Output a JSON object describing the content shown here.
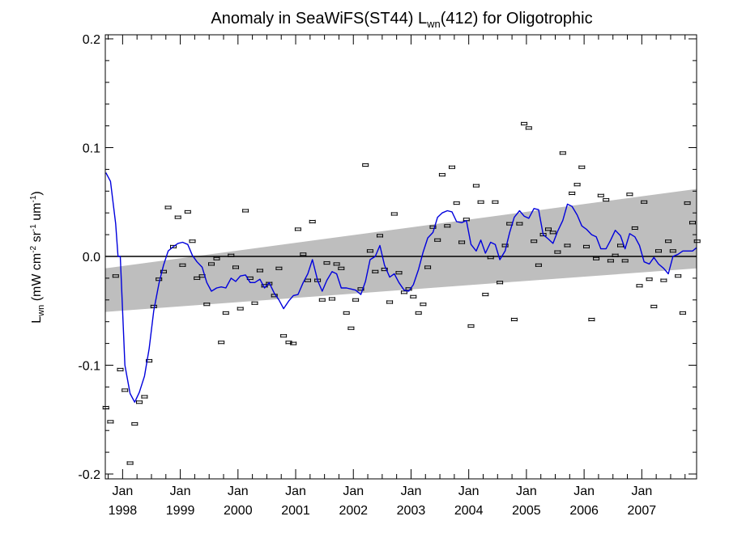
{
  "chart_data": {
    "type": "line",
    "title": {
      "prefix": "Anomaly in SeaWiFS(ST44) L",
      "sub": "wn",
      "suffix": "(412) for Oligotrophic"
    },
    "ylabel": {
      "main": "L",
      "sub": "wn",
      "paren": " (mW cm",
      "exp1": "-2",
      "sr": " sr",
      "exp2": "-1",
      "um": " um",
      "exp3": "-1",
      "close": ")"
    },
    "xlim": [
      1997.7,
      2007.95
    ],
    "ylim": [
      -0.2,
      0.2
    ],
    "yticks": [
      {
        "value": 0.2,
        "label": "0.2"
      },
      {
        "value": 0.1,
        "label": "0.1"
      },
      {
        "value": 0.0,
        "label": "0.0"
      },
      {
        "value": -0.1,
        "label": "-0.1"
      },
      {
        "value": -0.2,
        "label": "-0.2"
      }
    ],
    "xticks": [
      {
        "value": 1998,
        "month": "Jan",
        "year": "1998"
      },
      {
        "value": 1999,
        "month": "Jan",
        "year": "1999"
      },
      {
        "value": 2000,
        "month": "Jan",
        "year": "2000"
      },
      {
        "value": 2001,
        "month": "Jan",
        "year": "2001"
      },
      {
        "value": 2002,
        "month": "Jan",
        "year": "2002"
      },
      {
        "value": 2003,
        "month": "Jan",
        "year": "2003"
      },
      {
        "value": 2004,
        "month": "Jan",
        "year": "2004"
      },
      {
        "value": 2005,
        "month": "Jan",
        "year": "2005"
      },
      {
        "value": 2006,
        "month": "Jan",
        "year": "2006"
      },
      {
        "value": 2007,
        "month": "Jan",
        "year": "2007"
      }
    ],
    "zero_line": 0.0,
    "band": {
      "start": {
        "x": 1997.7,
        "lower": -0.051,
        "upper": -0.011
      },
      "end": {
        "x": 2007.95,
        "lower": -0.011,
        "upper": 0.062
      }
    },
    "monthly_points": [
      {
        "x": 1997.71,
        "y": -0.139
      },
      {
        "x": 1997.79,
        "y": -0.152
      },
      {
        "x": 1997.88,
        "y": -0.018
      },
      {
        "x": 1997.96,
        "y": -0.104
      },
      {
        "x": 1998.04,
        "y": -0.123
      },
      {
        "x": 1998.13,
        "y": -0.19
      },
      {
        "x": 1998.21,
        "y": -0.154
      },
      {
        "x": 1998.29,
        "y": -0.134
      },
      {
        "x": 1998.38,
        "y": -0.129
      },
      {
        "x": 1998.46,
        "y": -0.096
      },
      {
        "x": 1998.54,
        "y": -0.046
      },
      {
        "x": 1998.63,
        "y": -0.021
      },
      {
        "x": 1998.71,
        "y": -0.014
      },
      {
        "x": 1998.79,
        "y": 0.045
      },
      {
        "x": 1998.88,
        "y": 0.009
      },
      {
        "x": 1998.96,
        "y": 0.036
      },
      {
        "x": 1999.04,
        "y": -0.008
      },
      {
        "x": 1999.13,
        "y": 0.041
      },
      {
        "x": 1999.21,
        "y": 0.014
      },
      {
        "x": 1999.29,
        "y": -0.02
      },
      {
        "x": 1999.38,
        "y": -0.018
      },
      {
        "x": 1999.46,
        "y": -0.044
      },
      {
        "x": 1999.54,
        "y": -0.007
      },
      {
        "x": 1999.63,
        "y": -0.002
      },
      {
        "x": 1999.71,
        "y": -0.079
      },
      {
        "x": 1999.79,
        "y": -0.052
      },
      {
        "x": 1999.88,
        "y": 0.001
      },
      {
        "x": 1999.96,
        "y": -0.01
      },
      {
        "x": 2000.04,
        "y": -0.048
      },
      {
        "x": 2000.13,
        "y": 0.042
      },
      {
        "x": 2000.21,
        "y": -0.02
      },
      {
        "x": 2000.29,
        "y": -0.043
      },
      {
        "x": 2000.38,
        "y": -0.013
      },
      {
        "x": 2000.46,
        "y": -0.027
      },
      {
        "x": 2000.54,
        "y": -0.025
      },
      {
        "x": 2000.63,
        "y": -0.036
      },
      {
        "x": 2000.71,
        "y": -0.011
      },
      {
        "x": 2000.79,
        "y": -0.073
      },
      {
        "x": 2000.88,
        "y": -0.079
      },
      {
        "x": 2000.96,
        "y": -0.08
      },
      {
        "x": 2001.04,
        "y": 0.025
      },
      {
        "x": 2001.13,
        "y": 0.002
      },
      {
        "x": 2001.21,
        "y": -0.022
      },
      {
        "x": 2001.29,
        "y": 0.032
      },
      {
        "x": 2001.38,
        "y": -0.022
      },
      {
        "x": 2001.46,
        "y": -0.04
      },
      {
        "x": 2001.54,
        "y": -0.006
      },
      {
        "x": 2001.63,
        "y": -0.039
      },
      {
        "x": 2001.71,
        "y": -0.007
      },
      {
        "x": 2001.79,
        "y": -0.011
      },
      {
        "x": 2001.88,
        "y": -0.052
      },
      {
        "x": 2001.96,
        "y": -0.066
      },
      {
        "x": 2002.04,
        "y": -0.04
      },
      {
        "x": 2002.13,
        "y": -0.03
      },
      {
        "x": 2002.21,
        "y": 0.084
      },
      {
        "x": 2002.29,
        "y": 0.005
      },
      {
        "x": 2002.38,
        "y": -0.014
      },
      {
        "x": 2002.46,
        "y": 0.019
      },
      {
        "x": 2002.54,
        "y": -0.012
      },
      {
        "x": 2002.63,
        "y": -0.042
      },
      {
        "x": 2002.71,
        "y": 0.039
      },
      {
        "x": 2002.79,
        "y": -0.015
      },
      {
        "x": 2002.88,
        "y": -0.033
      },
      {
        "x": 2002.96,
        "y": -0.03
      },
      {
        "x": 2003.04,
        "y": -0.037
      },
      {
        "x": 2003.13,
        "y": -0.052
      },
      {
        "x": 2003.21,
        "y": -0.044
      },
      {
        "x": 2003.29,
        "y": -0.01
      },
      {
        "x": 2003.38,
        "y": 0.027
      },
      {
        "x": 2003.46,
        "y": 0.015
      },
      {
        "x": 2003.54,
        "y": 0.075
      },
      {
        "x": 2003.63,
        "y": 0.028
      },
      {
        "x": 2003.71,
        "y": 0.082
      },
      {
        "x": 2003.79,
        "y": 0.049
      },
      {
        "x": 2003.88,
        "y": 0.013
      },
      {
        "x": 2003.96,
        "y": 0.034
      },
      {
        "x": 2004.04,
        "y": -0.064
      },
      {
        "x": 2004.13,
        "y": 0.065
      },
      {
        "x": 2004.21,
        "y": 0.05
      },
      {
        "x": 2004.29,
        "y": -0.035
      },
      {
        "x": 2004.38,
        "y": -0.001
      },
      {
        "x": 2004.46,
        "y": 0.05
      },
      {
        "x": 2004.54,
        "y": -0.024
      },
      {
        "x": 2004.63,
        "y": 0.01
      },
      {
        "x": 2004.71,
        "y": 0.03
      },
      {
        "x": 2004.79,
        "y": -0.058
      },
      {
        "x": 2004.88,
        "y": 0.03
      },
      {
        "x": 2004.96,
        "y": 0.122
      },
      {
        "x": 2005.04,
        "y": 0.118
      },
      {
        "x": 2005.13,
        "y": 0.014
      },
      {
        "x": 2005.21,
        "y": -0.008
      },
      {
        "x": 2005.29,
        "y": 0.02
      },
      {
        "x": 2005.38,
        "y": 0.025
      },
      {
        "x": 2005.46,
        "y": 0.022
      },
      {
        "x": 2005.54,
        "y": 0.004
      },
      {
        "x": 2005.63,
        "y": 0.095
      },
      {
        "x": 2005.71,
        "y": 0.01
      },
      {
        "x": 2005.79,
        "y": 0.058
      },
      {
        "x": 2005.88,
        "y": 0.066
      },
      {
        "x": 2005.96,
        "y": 0.082
      },
      {
        "x": 2006.04,
        "y": 0.009
      },
      {
        "x": 2006.13,
        "y": -0.058
      },
      {
        "x": 2006.21,
        "y": -0.002
      },
      {
        "x": 2006.29,
        "y": 0.056
      },
      {
        "x": 2006.38,
        "y": 0.052
      },
      {
        "x": 2006.46,
        "y": -0.004
      },
      {
        "x": 2006.54,
        "y": 0.001
      },
      {
        "x": 2006.63,
        "y": 0.01
      },
      {
        "x": 2006.71,
        "y": -0.004
      },
      {
        "x": 2006.79,
        "y": 0.057
      },
      {
        "x": 2006.88,
        "y": 0.026
      },
      {
        "x": 2006.96,
        "y": -0.027
      },
      {
        "x": 2007.04,
        "y": 0.05
      },
      {
        "x": 2007.13,
        "y": -0.021
      },
      {
        "x": 2007.21,
        "y": -0.046
      },
      {
        "x": 2007.29,
        "y": 0.005
      },
      {
        "x": 2007.38,
        "y": -0.022
      },
      {
        "x": 2007.46,
        "y": 0.014
      },
      {
        "x": 2007.54,
        "y": 0.005
      },
      {
        "x": 2007.63,
        "y": -0.018
      },
      {
        "x": 2007.71,
        "y": -0.052
      },
      {
        "x": 2007.79,
        "y": 0.049
      },
      {
        "x": 2007.88,
        "y": 0.031
      },
      {
        "x": 2007.96,
        "y": 0.014
      }
    ],
    "smoothed_line": {
      "color": "#0000dd",
      "points": [
        {
          "x": 1997.71,
          "y": 0.077
        },
        {
          "x": 1997.79,
          "y": 0.069
        },
        {
          "x": 1997.88,
          "y": 0.03
        },
        {
          "x": 1997.92,
          "y": 0.0
        },
        {
          "x": 1997.96,
          "y": 0.0
        },
        {
          "x": 1998.04,
          "y": -0.1
        },
        {
          "x": 1998.13,
          "y": -0.126
        },
        {
          "x": 1998.21,
          "y": -0.134
        },
        {
          "x": 1998.29,
          "y": -0.125
        },
        {
          "x": 1998.38,
          "y": -0.11
        },
        {
          "x": 1998.46,
          "y": -0.085
        },
        {
          "x": 1998.54,
          "y": -0.05
        },
        {
          "x": 1998.63,
          "y": -0.025
        },
        {
          "x": 1998.71,
          "y": -0.008
        },
        {
          "x": 1998.79,
          "y": 0.005
        },
        {
          "x": 1998.88,
          "y": 0.009
        },
        {
          "x": 1998.96,
          "y": 0.012
        },
        {
          "x": 1999.04,
          "y": 0.013
        },
        {
          "x": 1999.13,
          "y": 0.011
        },
        {
          "x": 1999.21,
          "y": 0.001
        },
        {
          "x": 1999.29,
          "y": -0.005
        },
        {
          "x": 1999.38,
          "y": -0.01
        },
        {
          "x": 1999.46,
          "y": -0.024
        },
        {
          "x": 1999.54,
          "y": -0.032
        },
        {
          "x": 1999.63,
          "y": -0.029
        },
        {
          "x": 1999.71,
          "y": -0.028
        },
        {
          "x": 1999.79,
          "y": -0.029
        },
        {
          "x": 1999.88,
          "y": -0.02
        },
        {
          "x": 1999.96,
          "y": -0.023
        },
        {
          "x": 2000.04,
          "y": -0.018
        },
        {
          "x": 2000.13,
          "y": -0.017
        },
        {
          "x": 2000.21,
          "y": -0.024
        },
        {
          "x": 2000.29,
          "y": -0.024
        },
        {
          "x": 2000.38,
          "y": -0.021
        },
        {
          "x": 2000.46,
          "y": -0.029
        },
        {
          "x": 2000.54,
          "y": -0.024
        },
        {
          "x": 2000.63,
          "y": -0.034
        },
        {
          "x": 2000.71,
          "y": -0.04
        },
        {
          "x": 2000.79,
          "y": -0.048
        },
        {
          "x": 2000.88,
          "y": -0.041
        },
        {
          "x": 2000.96,
          "y": -0.036
        },
        {
          "x": 2001.04,
          "y": -0.035
        },
        {
          "x": 2001.13,
          "y": -0.024
        },
        {
          "x": 2001.21,
          "y": -0.016
        },
        {
          "x": 2001.29,
          "y": -0.003
        },
        {
          "x": 2001.38,
          "y": -0.022
        },
        {
          "x": 2001.46,
          "y": -0.032
        },
        {
          "x": 2001.54,
          "y": -0.022
        },
        {
          "x": 2001.63,
          "y": -0.014
        },
        {
          "x": 2001.71,
          "y": -0.016
        },
        {
          "x": 2001.79,
          "y": -0.029
        },
        {
          "x": 2001.88,
          "y": -0.029
        },
        {
          "x": 2001.96,
          "y": -0.03
        },
        {
          "x": 2002.04,
          "y": -0.031
        },
        {
          "x": 2002.13,
          "y": -0.035
        },
        {
          "x": 2002.21,
          "y": -0.023
        },
        {
          "x": 2002.29,
          "y": -0.003
        },
        {
          "x": 2002.38,
          "y": 0.0
        },
        {
          "x": 2002.46,
          "y": 0.01
        },
        {
          "x": 2002.54,
          "y": -0.008
        },
        {
          "x": 2002.63,
          "y": -0.019
        },
        {
          "x": 2002.71,
          "y": -0.016
        },
        {
          "x": 2002.79,
          "y": -0.024
        },
        {
          "x": 2002.88,
          "y": -0.031
        },
        {
          "x": 2002.96,
          "y": -0.032
        },
        {
          "x": 2003.04,
          "y": -0.026
        },
        {
          "x": 2003.13,
          "y": -0.012
        },
        {
          "x": 2003.21,
          "y": 0.004
        },
        {
          "x": 2003.29,
          "y": 0.017
        },
        {
          "x": 2003.38,
          "y": 0.022
        },
        {
          "x": 2003.46,
          "y": 0.036
        },
        {
          "x": 2003.54,
          "y": 0.04
        },
        {
          "x": 2003.63,
          "y": 0.042
        },
        {
          "x": 2003.71,
          "y": 0.041
        },
        {
          "x": 2003.79,
          "y": 0.032
        },
        {
          "x": 2003.88,
          "y": 0.031
        },
        {
          "x": 2003.96,
          "y": 0.033
        },
        {
          "x": 2004.04,
          "y": 0.011
        },
        {
          "x": 2004.13,
          "y": 0.005
        },
        {
          "x": 2004.21,
          "y": 0.015
        },
        {
          "x": 2004.29,
          "y": 0.003
        },
        {
          "x": 2004.38,
          "y": 0.013
        },
        {
          "x": 2004.46,
          "y": 0.011
        },
        {
          "x": 2004.54,
          "y": -0.003
        },
        {
          "x": 2004.63,
          "y": 0.005
        },
        {
          "x": 2004.71,
          "y": 0.022
        },
        {
          "x": 2004.79,
          "y": 0.036
        },
        {
          "x": 2004.88,
          "y": 0.042
        },
        {
          "x": 2004.96,
          "y": 0.037
        },
        {
          "x": 2005.04,
          "y": 0.035
        },
        {
          "x": 2005.13,
          "y": 0.044
        },
        {
          "x": 2005.21,
          "y": 0.043
        },
        {
          "x": 2005.29,
          "y": 0.02
        },
        {
          "x": 2005.38,
          "y": 0.016
        },
        {
          "x": 2005.46,
          "y": 0.012
        },
        {
          "x": 2005.54,
          "y": 0.023
        },
        {
          "x": 2005.63,
          "y": 0.033
        },
        {
          "x": 2005.71,
          "y": 0.048
        },
        {
          "x": 2005.79,
          "y": 0.046
        },
        {
          "x": 2005.88,
          "y": 0.038
        },
        {
          "x": 2005.96,
          "y": 0.028
        },
        {
          "x": 2006.04,
          "y": 0.025
        },
        {
          "x": 2006.13,
          "y": 0.02
        },
        {
          "x": 2006.21,
          "y": 0.018
        },
        {
          "x": 2006.29,
          "y": 0.007
        },
        {
          "x": 2006.38,
          "y": 0.007
        },
        {
          "x": 2006.46,
          "y": 0.015
        },
        {
          "x": 2006.54,
          "y": 0.024
        },
        {
          "x": 2006.63,
          "y": 0.019
        },
        {
          "x": 2006.71,
          "y": 0.007
        },
        {
          "x": 2006.79,
          "y": 0.021
        },
        {
          "x": 2006.88,
          "y": 0.018
        },
        {
          "x": 2006.96,
          "y": 0.01
        },
        {
          "x": 2007.04,
          "y": -0.005
        },
        {
          "x": 2007.13,
          "y": -0.007
        },
        {
          "x": 2007.21,
          "y": -0.001
        },
        {
          "x": 2007.29,
          "y": -0.007
        },
        {
          "x": 2007.38,
          "y": -0.011
        },
        {
          "x": 2007.46,
          "y": -0.016
        },
        {
          "x": 2007.54,
          "y": 0.0
        },
        {
          "x": 2007.63,
          "y": 0.002
        },
        {
          "x": 2007.71,
          "y": 0.005
        },
        {
          "x": 2007.79,
          "y": 0.005
        },
        {
          "x": 2007.88,
          "y": 0.005
        },
        {
          "x": 2007.95,
          "y": 0.008
        }
      ]
    },
    "colors": {
      "band": "#bebebe",
      "line": "#0000dd",
      "points": "#000000",
      "axes": "#000000"
    }
  }
}
